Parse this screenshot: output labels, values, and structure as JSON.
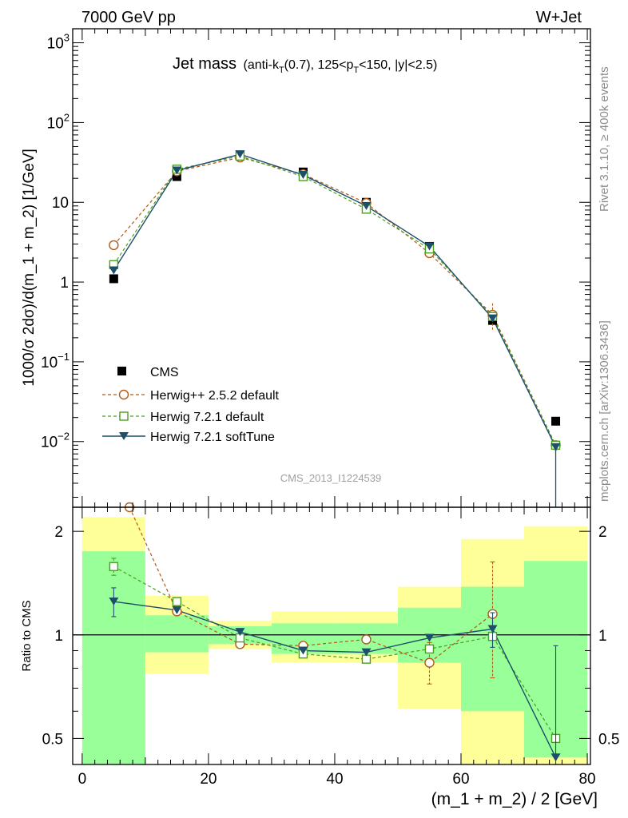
{
  "header": {
    "left": "7000 GeV pp",
    "right": "W+Jet"
  },
  "side_labels": {
    "rivet": "Rivet 3.1.10, ≥ 400k events",
    "mcplots": "mcplots.cern.ch [arXiv:1306.3436]"
  },
  "watermark": "CMS_2013_I1224539",
  "colors": {
    "cms": "#000000",
    "herwigpp": "#b35a14",
    "herwig721": "#4a9e22",
    "softtune": "#1d4f6b",
    "band_yellow": "#ffff99",
    "band_green": "#99ff99"
  },
  "chart_data": [
    {
      "type": "scatter",
      "title": "Jet mass",
      "title_detail": {
        "a": "(anti-k",
        "a_sub": "T",
        "b": "(0.7), 125<p",
        "b_sub": "T",
        "c": "<150, |y|<2.5)"
      },
      "ylabel": "1000/σ 2dσ)/d(m_1 + m_2) [1/GeV]",
      "xlabel": "(m_1 + m_2) / 2 [GeV]",
      "yscale": "log",
      "ylim": [
        0.0015,
        1500
      ],
      "xlim": [
        -1.5,
        80.5
      ],
      "y_ticks": [
        {
          "v": 0.01,
          "base": "10",
          "exp": "−2"
        },
        {
          "v": 0.1,
          "base": "10",
          "exp": "−1"
        },
        {
          "v": 1,
          "base": "1",
          "exp": ""
        },
        {
          "v": 10,
          "base": "10",
          "exp": ""
        },
        {
          "v": 100,
          "base": "10",
          "exp": "2"
        },
        {
          "v": 1000,
          "base": "10",
          "exp": "3"
        }
      ],
      "legend_position": "bottom-left",
      "x": [
        5,
        15,
        25,
        35,
        45,
        55,
        65,
        75
      ],
      "series": [
        {
          "name": "CMS",
          "marker": "filled-square",
          "line": "none",
          "values": [
            1.1,
            21,
            39,
            24,
            10,
            2.8,
            0.33,
            0.018
          ]
        },
        {
          "name": "Herwig++ 2.5.2 default",
          "marker": "open-circle",
          "line": "dashed",
          "values": [
            2.9,
            24.5,
            36.5,
            22.5,
            9.8,
            2.3,
            0.39,
            0.009
          ],
          "err_point": {
            "index": 6,
            "lo": 0.25,
            "hi": 0.54
          }
        },
        {
          "name": "Herwig 7.2.1 default",
          "marker": "open-square",
          "line": "dashed",
          "values": [
            1.65,
            26,
            38,
            21,
            8.2,
            2.6,
            0.37,
            0.009
          ]
        },
        {
          "name": "Herwig 7.2.1 softTune",
          "marker": "filled-triangle-down",
          "line": "solid",
          "values": [
            1.4,
            25,
            40,
            22,
            9,
            2.8,
            0.35,
            0.0085
          ]
        }
      ]
    },
    {
      "type": "scatter",
      "title": "",
      "ylabel": "Ratio to CMS",
      "xlabel": "(m_1 + m_2) / 2 [GeV]",
      "yscale": "log",
      "ylim": [
        0.42,
        2.35
      ],
      "xlim": [
        -1.5,
        80.5
      ],
      "x_ticks": [
        0,
        20,
        40,
        60,
        80
      ],
      "y_ticks": [
        0.5,
        1,
        2
      ],
      "reference_line": 1,
      "bands": [
        {
          "x0": 0,
          "x1": 10,
          "yellow": [
            0.3,
            2.2
          ],
          "green": [
            0.3,
            1.75
          ]
        },
        {
          "x0": 10,
          "x1": 20,
          "yellow": [
            0.77,
            1.3
          ],
          "green": [
            0.89,
            1.14
          ]
        },
        {
          "x0": 20,
          "x1": 30,
          "yellow": [
            0.91,
            1.1
          ],
          "green": [
            0.94,
            1.06
          ]
        },
        {
          "x0": 30,
          "x1": 40,
          "yellow": [
            0.83,
            1.17
          ],
          "green": [
            0.88,
            1.08
          ]
        },
        {
          "x0": 40,
          "x1": 50,
          "yellow": [
            0.83,
            1.17
          ],
          "green": [
            0.88,
            1.08
          ]
        },
        {
          "x0": 50,
          "x1": 60,
          "yellow": [
            0.61,
            1.38
          ],
          "green": [
            0.83,
            1.2
          ]
        },
        {
          "x0": 60,
          "x1": 70,
          "yellow": [
            0.3,
            1.9
          ],
          "green": [
            0.6,
            1.38
          ]
        },
        {
          "x0": 70,
          "x1": 80,
          "yellow": [
            0.3,
            2.07
          ],
          "green": [
            0.44,
            1.64
          ]
        }
      ],
      "x": [
        5,
        15,
        25,
        35,
        45,
        55,
        65,
        75
      ],
      "series": [
        {
          "name": "Herwig++ 2.5.2 default",
          "line": "dashed",
          "x": [
            7.5,
            15,
            25,
            35,
            45,
            55,
            65
          ],
          "values": [
            2.35,
            1.17,
            0.94,
            0.93,
            0.97,
            0.83,
            1.15
          ],
          "errors": [
            {
              "index": 5,
              "lo": 0.72,
              "hi": 0.95
            },
            {
              "index": 6,
              "lo": 0.75,
              "hi": 1.63
            }
          ]
        },
        {
          "name": "Herwig 7.2.1 default",
          "line": "dashed",
          "x": [
            5,
            15,
            25,
            35,
            45,
            55,
            65,
            75
          ],
          "values": [
            1.58,
            1.25,
            0.98,
            0.88,
            0.85,
            0.91,
            0.99,
            0.5
          ],
          "errors": [
            {
              "index": 0,
              "lo": 1.49,
              "hi": 1.67
            }
          ]
        },
        {
          "name": "Herwig 7.2.1 softTune",
          "line": "solid",
          "x": [
            5,
            15,
            25,
            35,
            45,
            55,
            65,
            75
          ],
          "values": [
            1.25,
            1.18,
            1.02,
            0.9,
            0.89,
            0.98,
            1.04,
            0.44
          ],
          "errors": [
            {
              "index": 0,
              "lo": 1.13,
              "hi": 1.37
            },
            {
              "index": 6,
              "lo": 0.92,
              "hi": 1.16
            },
            {
              "index": 7,
              "lo": 0.3,
              "hi": 0.93
            }
          ]
        }
      ]
    }
  ]
}
